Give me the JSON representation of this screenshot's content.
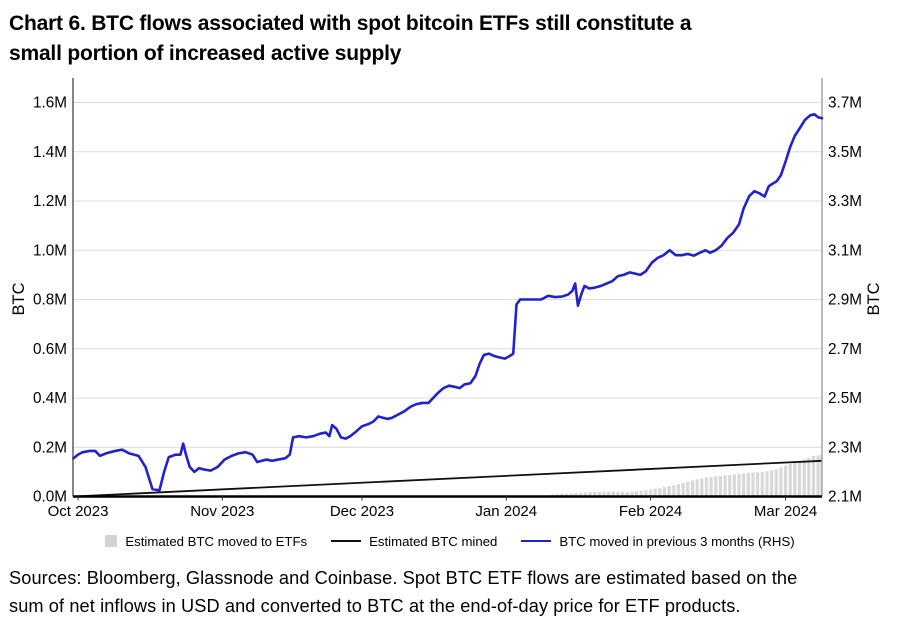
{
  "title_lines": [
    "Chart 6. BTC flows associated with spot bitcoin ETFs still constitute a",
    "small portion of increased active supply"
  ],
  "source_lines": [
    "Sources: Bloomberg, Glassnode and Coinbase. Spot BTC ETF flows are estimated based on the",
    "sum of net inflows in USD and converted to BTC at the end-of-day price for ETF products."
  ],
  "colors": {
    "blue_line": "#2222cc",
    "black_line": "#111111",
    "bar_fill": "#d8d8d8",
    "grid": "#dcdcdc",
    "axis_left": "#444444",
    "axis_right": "#999999",
    "axis_bottom": "#000000"
  },
  "chart_data": {
    "type": "line",
    "title": "Chart 6. BTC flows associated with spot bitcoin ETFs still constitute a small portion of increased active supply",
    "grid": true,
    "legend_position": "bottom",
    "left_axis": {
      "label": "BTC",
      "min": 0.0,
      "max": 1.6,
      "tick_step": 0.2,
      "tick_labels": [
        "0.0M",
        "0.2M",
        "0.4M",
        "0.6M",
        "0.8M",
        "1.0M",
        "1.2M",
        "1.4M",
        "1.6M"
      ]
    },
    "right_axis": {
      "label": "BTC",
      "min": 2.1,
      "max": 3.7,
      "tick_step": 0.2,
      "tick_labels": [
        "2.1M",
        "2.3M",
        "2.5M",
        "2.7M",
        "2.9M",
        "3.1M",
        "3.3M",
        "3.5M",
        "3.7M"
      ]
    },
    "x_axis": {
      "tick_labels": [
        "Oct 2023",
        "Nov 2023",
        "Dec 2023",
        "Jan 2024",
        "Feb 2024",
        "Mar 2024"
      ],
      "tick_day_offsets": [
        0,
        31,
        61,
        92,
        123,
        152
      ],
      "start_label": "Oct 2023",
      "note": "x stored as days since Oct 1, 2023; plot spans day -1 to 160"
    },
    "series": [
      {
        "name": "Estimated BTC moved to ETFs",
        "type": "bar",
        "axis": "left",
        "unit": "M BTC",
        "points": [
          [
            102,
            0.008
          ],
          [
            106,
            0.012
          ],
          [
            110,
            0.018
          ],
          [
            115,
            0.02
          ],
          [
            118,
            0.018
          ],
          [
            122,
            0.025
          ],
          [
            125,
            0.035
          ],
          [
            129,
            0.05
          ],
          [
            133,
            0.07
          ],
          [
            136,
            0.08
          ],
          [
            140,
            0.088
          ],
          [
            144,
            0.095
          ],
          [
            147,
            0.1
          ],
          [
            150,
            0.11
          ],
          [
            152,
            0.125
          ],
          [
            154,
            0.14
          ],
          [
            156,
            0.15
          ],
          [
            158,
            0.165
          ],
          [
            160,
            0.17
          ]
        ]
      },
      {
        "name": "Estimated BTC mined",
        "type": "line",
        "axis": "left",
        "unit": "M BTC",
        "points": [
          [
            -1,
            0.0
          ],
          [
            160,
            0.145
          ]
        ]
      },
      {
        "name": "BTC moved in previous 3 months (RHS)",
        "type": "line",
        "axis": "right",
        "unit": "M BTC",
        "points": [
          [
            -1,
            2.255
          ],
          [
            0,
            2.27
          ],
          [
            1,
            2.28
          ],
          [
            2.5,
            2.285
          ],
          [
            3.7,
            2.285
          ],
          [
            4.7,
            2.265
          ],
          [
            6,
            2.275
          ],
          [
            8,
            2.285
          ],
          [
            9.5,
            2.29
          ],
          [
            11,
            2.275
          ],
          [
            13,
            2.265
          ],
          [
            14.5,
            2.22
          ],
          [
            15.5,
            2.16
          ],
          [
            16,
            2.13
          ],
          [
            17.5,
            2.125
          ],
          [
            18.5,
            2.2
          ],
          [
            19.5,
            2.26
          ],
          [
            21,
            2.27
          ],
          [
            22,
            2.27
          ],
          [
            22.6,
            2.315
          ],
          [
            23.2,
            2.27
          ],
          [
            24,
            2.22
          ],
          [
            25,
            2.2
          ],
          [
            26,
            2.215
          ],
          [
            27,
            2.21
          ],
          [
            28.5,
            2.205
          ],
          [
            30,
            2.22
          ],
          [
            31.5,
            2.25
          ],
          [
            33,
            2.265
          ],
          [
            34.5,
            2.275
          ],
          [
            36,
            2.28
          ],
          [
            37.5,
            2.27
          ],
          [
            38.5,
            2.24
          ],
          [
            39.5,
            2.245
          ],
          [
            40.5,
            2.25
          ],
          [
            41.7,
            2.245
          ],
          [
            43,
            2.25
          ],
          [
            44.5,
            2.255
          ],
          [
            45.5,
            2.27
          ],
          [
            46.2,
            2.34
          ],
          [
            47.5,
            2.345
          ],
          [
            49,
            2.34
          ],
          [
            50.5,
            2.345
          ],
          [
            52,
            2.355
          ],
          [
            53.2,
            2.36
          ],
          [
            54,
            2.345
          ],
          [
            54.6,
            2.39
          ],
          [
            55.5,
            2.375
          ],
          [
            56.5,
            2.34
          ],
          [
            57.5,
            2.335
          ],
          [
            58.5,
            2.345
          ],
          [
            59.5,
            2.36
          ],
          [
            61,
            2.385
          ],
          [
            62.5,
            2.395
          ],
          [
            63.5,
            2.405
          ],
          [
            64.5,
            2.425
          ],
          [
            65.5,
            2.42
          ],
          [
            66.5,
            2.415
          ],
          [
            67.5,
            2.42
          ],
          [
            68.5,
            2.43
          ],
          [
            70,
            2.445
          ],
          [
            71.5,
            2.465
          ],
          [
            72.7,
            2.475
          ],
          [
            74,
            2.48
          ],
          [
            75.3,
            2.48
          ],
          [
            76.3,
            2.5
          ],
          [
            77.3,
            2.52
          ],
          [
            78.5,
            2.54
          ],
          [
            79.7,
            2.55
          ],
          [
            81,
            2.545
          ],
          [
            82,
            2.54
          ],
          [
            83,
            2.555
          ],
          [
            84.3,
            2.56
          ],
          [
            85.4,
            2.59
          ],
          [
            86.3,
            2.64
          ],
          [
            87.2,
            2.675
          ],
          [
            88.3,
            2.68
          ],
          [
            89.5,
            2.67
          ],
          [
            90.5,
            2.665
          ],
          [
            91.7,
            2.66
          ],
          [
            92.7,
            2.67
          ],
          [
            93.5,
            2.68
          ],
          [
            94.2,
            2.88
          ],
          [
            95,
            2.9
          ],
          [
            96.5,
            2.9
          ],
          [
            98,
            2.9
          ],
          [
            99.5,
            2.9
          ],
          [
            101,
            2.915
          ],
          [
            102.5,
            2.91
          ],
          [
            104,
            2.912
          ],
          [
            105.3,
            2.92
          ],
          [
            106.2,
            2.935
          ],
          [
            106.8,
            2.965
          ],
          [
            107.4,
            2.875
          ],
          [
            108.1,
            2.92
          ],
          [
            108.8,
            2.955
          ],
          [
            109.8,
            2.945
          ],
          [
            111,
            2.948
          ],
          [
            112.3,
            2.955
          ],
          [
            113.6,
            2.965
          ],
          [
            114.8,
            2.975
          ],
          [
            116,
            2.995
          ],
          [
            117.2,
            3.0
          ],
          [
            118.5,
            3.01
          ],
          [
            119.7,
            3.005
          ],
          [
            120.8,
            3.0
          ],
          [
            122,
            3.015
          ],
          [
            123.3,
            3.05
          ],
          [
            124.6,
            3.07
          ],
          [
            125.8,
            3.08
          ],
          [
            127.1,
            3.1
          ],
          [
            128.4,
            3.08
          ],
          [
            129.7,
            3.08
          ],
          [
            131,
            3.085
          ],
          [
            132.3,
            3.078
          ],
          [
            133.6,
            3.09
          ],
          [
            134.8,
            3.1
          ],
          [
            135.8,
            3.09
          ],
          [
            137,
            3.1
          ],
          [
            138.3,
            3.12
          ],
          [
            139.5,
            3.15
          ],
          [
            140.7,
            3.17
          ],
          [
            142,
            3.205
          ],
          [
            143,
            3.27
          ],
          [
            144.2,
            3.32
          ],
          [
            145.3,
            3.34
          ],
          [
            146.5,
            3.33
          ],
          [
            147.5,
            3.318
          ],
          [
            148.4,
            3.36
          ],
          [
            149.2,
            3.37
          ],
          [
            150.1,
            3.38
          ],
          [
            151,
            3.405
          ],
          [
            152,
            3.46
          ],
          [
            153,
            3.52
          ],
          [
            154,
            3.565
          ],
          [
            155.2,
            3.6
          ],
          [
            156.2,
            3.63
          ],
          [
            157.3,
            3.648
          ],
          [
            158.2,
            3.652
          ],
          [
            159,
            3.64
          ],
          [
            160,
            3.636
          ]
        ]
      }
    ]
  }
}
